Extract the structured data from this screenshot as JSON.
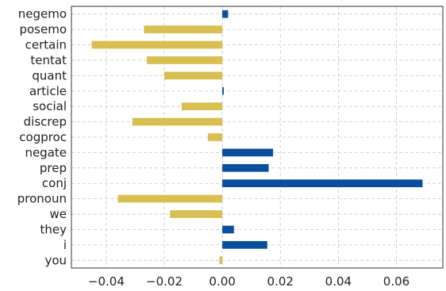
{
  "chart_data": {
    "type": "bar",
    "orientation": "horizontal",
    "categories": [
      "negemo",
      "posemo",
      "certain",
      "tentat",
      "quant",
      "article",
      "social",
      "discrep",
      "cogproc",
      "negate",
      "prep",
      "conj",
      "pronoun",
      "we",
      "they",
      "i",
      "you"
    ],
    "values": [
      0.002,
      -0.027,
      -0.045,
      -0.026,
      -0.02,
      0.0005,
      -0.014,
      -0.031,
      -0.005,
      0.0175,
      0.016,
      0.069,
      -0.036,
      -0.018,
      0.004,
      0.0155,
      -0.001
    ],
    "xlim": [
      -0.052,
      0.076
    ],
    "xticks": [
      -0.04,
      -0.02,
      0.0,
      0.02,
      0.04,
      0.06
    ],
    "xtick_labels": [
      "−0.04",
      "−0.02",
      "0.00",
      "0.02",
      "0.04",
      "0.06"
    ],
    "title": "",
    "xlabel": "",
    "ylabel": "",
    "grid": true,
    "colors": {
      "positive": "#0b4f9c",
      "negative": "#d8bf52"
    }
  }
}
